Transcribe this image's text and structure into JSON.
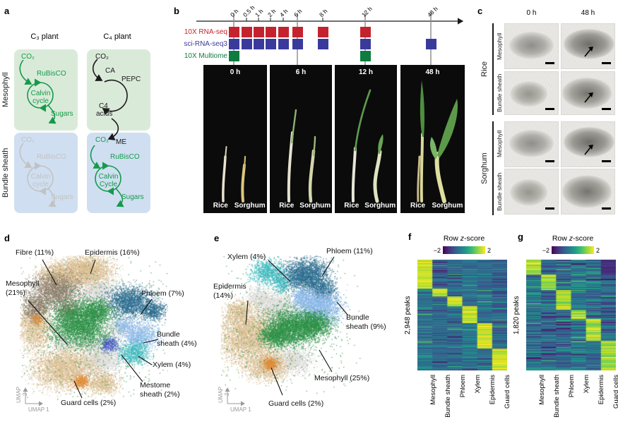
{
  "panel_letters": {
    "a": "a",
    "b": "b",
    "c": "c",
    "d": "d",
    "e": "e",
    "f": "f",
    "g": "g"
  },
  "panel_a": {
    "col_titles": [
      "C₃ plant",
      "C₄ plant"
    ],
    "row_labels": [
      "Mesophyll",
      "Bundle sheath"
    ],
    "c3_cycle": {
      "co2": "CO₂",
      "enzyme": "RuBisCO",
      "cycle_l1": "Calvin",
      "cycle_l2": "cycle",
      "product": "Sugars"
    },
    "c4_mesophyll": {
      "co2": "CO₂",
      "ca": "CA",
      "pepc": "PEPC",
      "acids_l1": "C4",
      "acids_l2": "acids"
    },
    "c4_bundle": {
      "co2": "CO₂",
      "me": "ME",
      "enzyme": "RuBisCO",
      "cycle_l1": "Calvin",
      "cycle_l2": "Cycle",
      "product": "Sugars"
    }
  },
  "panel_b": {
    "timepoints": [
      "0 h",
      "0.5 h",
      "1 h",
      "2 h",
      "4 h",
      "6 h",
      "8 h",
      "12 h",
      "48 h"
    ],
    "assays": [
      {
        "name": "10X RNA-seq",
        "color": "#c4232e",
        "sample_indices": [
          0,
          1,
          2,
          3,
          4,
          5,
          6,
          7
        ]
      },
      {
        "name": "sci-RNA-seq3",
        "color": "#3a3a9c",
        "sample_indices": [
          0,
          1,
          2,
          3,
          4,
          5,
          6,
          7,
          8
        ]
      },
      {
        "name": "10X Multiome",
        "color": "#0e7c3f",
        "sample_indices": [
          0,
          7
        ]
      }
    ],
    "photo_times": [
      "0 h",
      "6 h",
      "12 h",
      "48 h"
    ],
    "species": [
      "Rice",
      "Sorghum"
    ]
  },
  "panel_c": {
    "col_headers": [
      "0 h",
      "48 h"
    ],
    "groups": [
      {
        "species": "Rice",
        "tissues": [
          "Mesophyll",
          "Bundle sheath"
        ]
      },
      {
        "species": "Sorghum",
        "tissues": [
          "Mesophyll",
          "Bundle sheath"
        ]
      }
    ]
  },
  "chart_data": [
    {
      "id": "umap_d",
      "type": "scatter",
      "xlabel": "UMAP 1",
      "ylabel": "UMAP 2",
      "clusters": [
        {
          "name": "Fibre",
          "percent": 11,
          "label": "Fibre (11%)",
          "color": "#8d7c6a"
        },
        {
          "name": "Epidermis",
          "percent": 16,
          "label": "Epidermis (16%)",
          "color": "#d8bd8f"
        },
        {
          "name": "Mesophyll",
          "percent": 21,
          "label": "Mesophyll (21%)",
          "color": "#2f9148"
        },
        {
          "name": "Phloem",
          "percent": 7,
          "label": "Phloem (7%)",
          "color": "#2d6e90"
        },
        {
          "name": "Bundle sheath",
          "percent": 4,
          "label": "Bundle sheath (4%)",
          "color": "#8cb8e8"
        },
        {
          "name": "Xylem",
          "percent": 4,
          "label": "Xylem (4%)",
          "color": "#3ab8bd"
        },
        {
          "name": "Mestome sheath",
          "percent": 2,
          "label": "Mestome sheath (2%)",
          "color": "#4657c4"
        },
        {
          "name": "Guard cells",
          "percent": 2,
          "label": "Guard cells (2%)",
          "color": "#e08a33"
        }
      ],
      "unlabeled_color": "#dcdcda"
    },
    {
      "id": "umap_e",
      "type": "scatter",
      "xlabel": "UMAP 1",
      "ylabel": "UMAP 2",
      "clusters": [
        {
          "name": "Xylem",
          "percent": 4,
          "label": "Xylem (4%)",
          "color": "#3ab8bd"
        },
        {
          "name": "Phloem",
          "percent": 11,
          "label": "Phloem (11%)",
          "color": "#2d6e90"
        },
        {
          "name": "Epidermis",
          "percent": 14,
          "label": "Epidermis (14%)",
          "color": "#d8bd8f"
        },
        {
          "name": "Bundle sheath",
          "percent": 9,
          "label": "Bundle sheath (9%)",
          "color": "#8cb8e8"
        },
        {
          "name": "Mesophyll",
          "percent": 25,
          "label": "Mesophyll (25%)",
          "color": "#2f9148"
        },
        {
          "name": "Guard cells",
          "percent": 2,
          "label": "Guard cells (2%)",
          "color": "#e08a33"
        }
      ],
      "unlabeled_color": "#dcdcda"
    },
    {
      "id": "heatmap_f",
      "type": "heatmap",
      "title_pre": "Row ",
      "title_z": "z",
      "title_post": "-score",
      "ylabel": "2,948 peaks",
      "colorbar_min": "−2",
      "colorbar_max": "2",
      "columns": [
        "Mesophyll",
        "Bundle sheath",
        "Phloem",
        "Xylem",
        "Epidermis",
        "Guard cells"
      ],
      "column_block_fractions": [
        [
          0,
          0.26
        ],
        [
          0.26,
          0.33
        ],
        [
          0.33,
          0.42
        ],
        [
          0.42,
          0.57
        ],
        [
          0.57,
          0.8
        ],
        [
          0.8,
          1.0
        ]
      ]
    },
    {
      "id": "heatmap_g",
      "type": "heatmap",
      "title_pre": "Row ",
      "title_z": "z",
      "title_post": "-score",
      "ylabel": "1,820 peaks",
      "colorbar_min": "−2",
      "colorbar_max": "2",
      "columns": [
        "Mesophyll",
        "Bundle sheath",
        "Phloem",
        "Xylem",
        "Epidermis",
        "Guard cells"
      ],
      "column_block_fractions": [
        [
          0,
          0.13
        ],
        [
          0.13,
          0.27
        ],
        [
          0.27,
          0.45
        ],
        [
          0.45,
          0.53
        ],
        [
          0.53,
          0.73
        ],
        [
          0.73,
          1.0
        ]
      ]
    }
  ]
}
